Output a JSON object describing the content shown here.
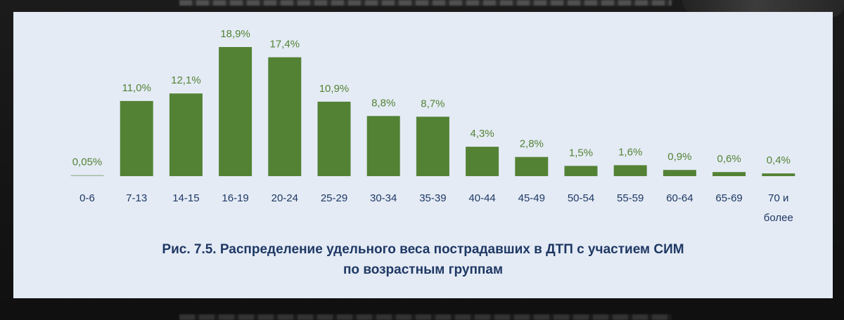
{
  "chart_data": {
    "type": "bar",
    "categories": [
      "0-6",
      "7-13",
      "14-15",
      "16-19",
      "20-24",
      "25-29",
      "30-34",
      "35-39",
      "40-44",
      "45-49",
      "50-54",
      "55-59",
      "60-64",
      "65-69",
      "70 и более"
    ],
    "category_lines": [
      [
        "0-6"
      ],
      [
        "7-13"
      ],
      [
        "14-15"
      ],
      [
        "16-19"
      ],
      [
        "20-24"
      ],
      [
        "25-29"
      ],
      [
        "30-34"
      ],
      [
        "35-39"
      ],
      [
        "40-44"
      ],
      [
        "45-49"
      ],
      [
        "50-54"
      ],
      [
        "55-59"
      ],
      [
        "60-64"
      ],
      [
        "65-69"
      ],
      [
        "70 и",
        "более"
      ]
    ],
    "values": [
      0.05,
      11.0,
      12.1,
      18.9,
      17.4,
      10.9,
      8.8,
      8.7,
      4.3,
      2.8,
      1.5,
      1.6,
      0.9,
      0.6,
      0.4
    ],
    "value_labels": [
      "0,05%",
      "11,0%",
      "12,1%",
      "18,9%",
      "17,4%",
      "10,9%",
      "8,8%",
      "8,7%",
      "4,3%",
      "2,8%",
      "1,5%",
      "1,6%",
      "0,9%",
      "0,6%",
      "0,4%"
    ],
    "title_lines": [
      "Рис. 7.5. Распределение удельного веса пострадавших в ДТП с участием СИМ",
      "по возрастным группам"
    ],
    "title": "Рис. 7.5. Распределение удельного веса пострадавших в ДТП с участием СИМ по возрастным группам",
    "xlabel": "",
    "ylabel": "",
    "ylim": [
      0,
      18.9
    ],
    "grid": false,
    "legend": "none",
    "bar_color": "#548235",
    "label_color": "#548235",
    "axis_text_color": "#1f3864",
    "background_color": "#e4ebf5"
  }
}
